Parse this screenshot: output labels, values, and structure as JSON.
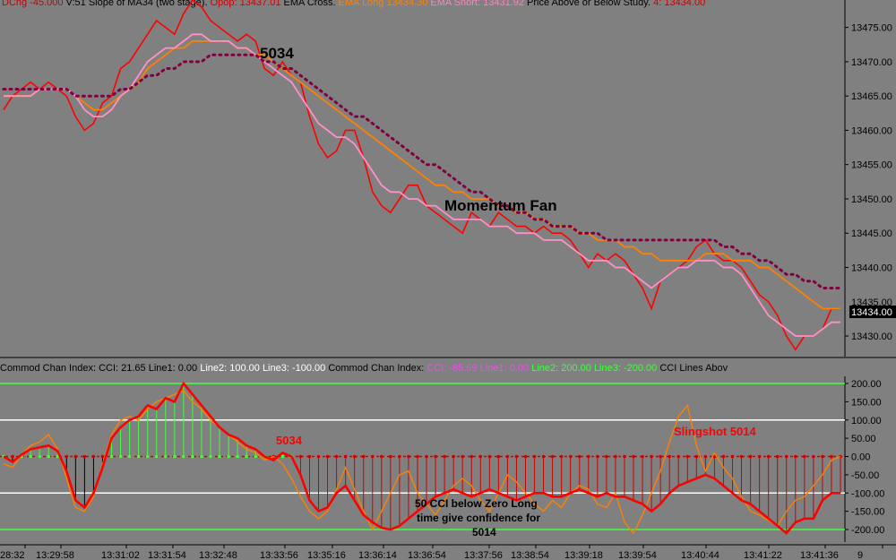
{
  "upper_pane": {
    "header": [
      {
        "text": "DChg -45.000",
        "color": "#cc0000"
      },
      {
        "text": "V:51",
        "color": "#000000"
      },
      {
        "text": "Slope of MA34 (two stage).",
        "color": "#000000"
      },
      {
        "text": "Opop: 13437.01",
        "color": "#cc0000"
      },
      {
        "text": "EMA Cross.",
        "color": "#000000"
      },
      {
        "text": "EMA Long 13434.30",
        "color": "#ff8000"
      },
      {
        "text": "EMA Short: 13431.92",
        "color": "#ff80c0"
      },
      {
        "text": "Price Above or Below Study.",
        "color": "#000000"
      },
      {
        "text": "4: 13434.00",
        "color": "#cc0000"
      }
    ],
    "price_axis": [
      "13475.00",
      "13470.00",
      "13465.00",
      "13460.00",
      "13455.00",
      "13450.00",
      "13445.00",
      "13440.00",
      "13430.00"
    ],
    "partial_price_label": "13435.00",
    "current_price": "13434.00",
    "annotations": {
      "label_5034": "5034",
      "momentum_fan": "Momentum Fan"
    }
  },
  "lower_pane": {
    "header": [
      {
        "text": "Commod Chan Index:",
        "color": "#000000"
      },
      {
        "text": "CCI: 21.65",
        "color": "#000000"
      },
      {
        "text": "Line1: 0.00",
        "color": "#000000"
      },
      {
        "text": "Line2: 100.00",
        "color": "#ffffff"
      },
      {
        "text": "Line3: -100.00",
        "color": "#ffffff"
      },
      {
        "text": "Commod Chan Index:",
        "color": "#000000"
      },
      {
        "text": "CCI: -85.69",
        "color": "#ff40ff"
      },
      {
        "text": "Line1: 0.00",
        "color": "#ff40ff"
      },
      {
        "text": "Line2: 200.00",
        "color": "#40ff40"
      },
      {
        "text": "Line3: -200.00",
        "color": "#40ff40"
      },
      {
        "text": "CCI Lines Abov",
        "color": "#000000"
      }
    ],
    "cci_axis": [
      "200.00",
      "150.00",
      "100.00",
      "50.00",
      "0.00",
      "-50.00",
      "-100.00",
      "-150.00",
      "-200.00"
    ],
    "annotations": {
      "label_5034": "5034",
      "slingshot": "Slingshot 5014",
      "note_line1": "50 CCI below Zero Long",
      "note_line2": "time give confidence for",
      "note_line3": "5014"
    }
  },
  "time_axis": [
    "28:32",
    "13:29:58",
    "13:31:02",
    "13:31:54",
    "13:32:48",
    "13:33:56",
    "13:35:16",
    "13:36:14",
    "13:36:54",
    "13:37:56",
    "13:38:54",
    "13:39:18",
    "13:39:54",
    "13:40:44",
    "13:41:22",
    "13:41:36",
    "9"
  ],
  "colors": {
    "background": "#808080",
    "price": "#ff0000",
    "ema_long": "#ff8000",
    "ema_short": "#ff90c8",
    "cci_main": "#ff0000",
    "cci_secondary": "#ff8000",
    "level_200": "#40ff40",
    "level_100": "#ffffff",
    "zero_line": "#cc0000"
  },
  "chart_data": [
    {
      "type": "line",
      "title": "",
      "ylim": [
        13427,
        13479
      ],
      "x": [
        0,
        1,
        2,
        3,
        4,
        5,
        6,
        7,
        8,
        9,
        10,
        11,
        12,
        13,
        14,
        15,
        16,
        17,
        18,
        19,
        20,
        21,
        22,
        23,
        24,
        25,
        26,
        27,
        28,
        29,
        30,
        31,
        32,
        33,
        34,
        35,
        36,
        37,
        38,
        39,
        40,
        41,
        42,
        43,
        44,
        45,
        46,
        47,
        48,
        49,
        50,
        51,
        52,
        53,
        54,
        55,
        56,
        57,
        58,
        59,
        60,
        61,
        62,
        63,
        64,
        65,
        66,
        67,
        68,
        69,
        70,
        71,
        72,
        73,
        74,
        75,
        76,
        77,
        78,
        79,
        80,
        81,
        82,
        83,
        84,
        85,
        86,
        87,
        88,
        89,
        90,
        91,
        92,
        93
      ],
      "series": [
        {
          "values": [
            13463,
            13465,
            13466,
            13467,
            13466,
            13467,
            13466,
            13465,
            13462,
            13460,
            13461,
            13464,
            13465,
            13469,
            13470,
            13472,
            13474,
            13476,
            13475,
            13474,
            13477,
            13479,
            13478,
            13476,
            13475,
            13474,
            13473,
            13474,
            13473,
            13469,
            13468,
            13470,
            13468,
            13467,
            13462,
            13458,
            13456,
            13457,
            13460,
            13460,
            13456,
            13451,
            13449,
            13448,
            13450,
            13452,
            13452,
            13449,
            13448,
            13447,
            13446,
            13445,
            13448,
            13447,
            13446,
            13448,
            13447,
            13446,
            13446,
            13445,
            13446,
            13445,
            13445,
            13444,
            13442,
            13440,
            13442,
            13441,
            13442,
            13441,
            13439,
            13437,
            13434,
            13438,
            13439,
            13440,
            13441,
            13443,
            13444,
            13442,
            13441,
            13441,
            13440,
            13438,
            13436,
            13435,
            13433,
            13430,
            13428,
            13430,
            13430,
            13431,
            13434,
            13434
          ]
        },
        {
          "values": [
            13465,
            13465,
            13465,
            13465,
            13466,
            13466,
            13466,
            13466,
            13465,
            13464,
            13463,
            13463,
            13464,
            13465,
            13466,
            13467,
            13469,
            13470,
            13471,
            13472,
            13472,
            13473,
            13473,
            13473,
            13473,
            13473,
            13472,
            13472,
            13471,
            13471,
            13470,
            13469,
            13468,
            13467,
            13466,
            13465,
            13464,
            13463,
            13462,
            13461,
            13460,
            13459,
            13458,
            13457,
            13456,
            13455,
            13454,
            13453,
            13452,
            13452,
            13451,
            13451,
            13450,
            13450,
            13450,
            13449,
            13449,
            13448,
            13448,
            13447,
            13447,
            13446,
            13446,
            13446,
            13445,
            13445,
            13444,
            13444,
            13444,
            13443,
            13443,
            13442,
            13442,
            13441,
            13441,
            13441,
            13441,
            13441,
            13442,
            13442,
            13442,
            13441,
            13441,
            13441,
            13440,
            13440,
            13439,
            13438,
            13437,
            13436,
            13435,
            13434,
            13434,
            13434
          ]
        },
        {
          "values": [
            13465,
            13465,
            13465,
            13465,
            13466,
            13466,
            13466,
            13466,
            13465,
            13463,
            13462,
            13462,
            13463,
            13465,
            13466,
            13468,
            13470,
            13471,
            13472,
            13472,
            13473,
            13474,
            13474,
            13473,
            13473,
            13473,
            13472,
            13472,
            13471,
            13470,
            13469,
            13468,
            13467,
            13465,
            13463,
            13461,
            13460,
            13459,
            13459,
            13458,
            13456,
            13454,
            13452,
            13451,
            13451,
            13450,
            13450,
            13449,
            13449,
            13448,
            13447,
            13447,
            13447,
            13447,
            13446,
            13446,
            13446,
            13445,
            13445,
            13445,
            13444,
            13444,
            13444,
            13443,
            13442,
            13441,
            13441,
            13441,
            13440,
            13440,
            13439,
            13438,
            13437,
            13438,
            13439,
            13440,
            13440,
            13441,
            13441,
            13441,
            13440,
            13440,
            13439,
            13437,
            13435,
            13433,
            13432,
            13431,
            13430,
            13430,
            13430,
            13431,
            13432,
            13432
          ]
        },
        {
          "values": [
            13466,
            13466,
            13466,
            13466,
            13466,
            13466,
            13466,
            13466,
            13465,
            13465,
            13465,
            13465,
            13465,
            13466,
            13466,
            13467,
            13468,
            13468,
            13469,
            13469,
            13470,
            13470,
            13470,
            13471,
            13471,
            13471,
            13471,
            13471,
            13471,
            13470,
            13470,
            13469,
            13469,
            13468,
            13467,
            13466,
            13465,
            13464,
            13463,
            13462,
            13462,
            13461,
            13460,
            13459,
            13458,
            13457,
            13456,
            13455,
            13455,
            13454,
            13453,
            13452,
            13451,
            13451,
            13450,
            13449,
            13449,
            13448,
            13448,
            13447,
            13447,
            13446,
            13446,
            13446,
            13445,
            13445,
            13445,
            13444,
            13444,
            13444,
            13444,
            13444,
            13444,
            13444,
            13444,
            13444,
            13444,
            13444,
            13444,
            13444,
            13443,
            13443,
            13442,
            13442,
            13441,
            13441,
            13440,
            13439,
            13439,
            13438,
            13438,
            13437,
            13437,
            13437
          ]
        }
      ]
    },
    {
      "type": "line",
      "title": "",
      "ylim": [
        -225,
        225
      ],
      "x": [
        0,
        1,
        2,
        3,
        4,
        5,
        6,
        7,
        8,
        9,
        10,
        11,
        12,
        13,
        14,
        15,
        16,
        17,
        18,
        19,
        20,
        21,
        22,
        23,
        24,
        25,
        26,
        27,
        28,
        29,
        30,
        31,
        32,
        33,
        34,
        35,
        36,
        37,
        38,
        39,
        40,
        41,
        42,
        43,
        44,
        45,
        46,
        47,
        48,
        49,
        50,
        51,
        52,
        53,
        54,
        55,
        56,
        57,
        58,
        59,
        60,
        61,
        62,
        63,
        64,
        65,
        66,
        67,
        68,
        69,
        70,
        71,
        72,
        73,
        74,
        75,
        76,
        77,
        78,
        79,
        80,
        81,
        82,
        83,
        84,
        85,
        86,
        87,
        88,
        89,
        90,
        91,
        92,
        93
      ],
      "series": [
        {
          "values": [
            0,
            -15,
            5,
            20,
            25,
            30,
            15,
            -40,
            -120,
            -140,
            -100,
            -30,
            50,
            80,
            100,
            110,
            140,
            130,
            160,
            150,
            200,
            170,
            140,
            110,
            80,
            60,
            50,
            30,
            20,
            0,
            -10,
            10,
            0,
            -50,
            -120,
            -150,
            -140,
            -100,
            -80,
            -120,
            -160,
            -180,
            -195,
            -200,
            -190,
            -170,
            -150,
            -130,
            -110,
            -100,
            -90,
            -100,
            -110,
            -100,
            -90,
            -100,
            -110,
            -120,
            -110,
            -100,
            -100,
            -110,
            -110,
            -100,
            -90,
            -100,
            -110,
            -100,
            -110,
            -110,
            -120,
            -130,
            -150,
            -130,
            -100,
            -80,
            -70,
            -60,
            -50,
            -60,
            -80,
            -100,
            -120,
            -130,
            -150,
            -170,
            -190,
            -210,
            -180,
            -170,
            -170,
            -120,
            -100,
            -100
          ]
        },
        {
          "values": [
            -20,
            -30,
            5,
            30,
            40,
            60,
            20,
            -60,
            -140,
            -150,
            -110,
            -20,
            60,
            100,
            110,
            100,
            130,
            150,
            160,
            170,
            180,
            150,
            130,
            100,
            80,
            60,
            40,
            20,
            10,
            -10,
            0,
            -20,
            -60,
            -110,
            -150,
            -170,
            -150,
            -90,
            -30,
            -90,
            -150,
            -200,
            -150,
            -100,
            -50,
            -40,
            -100,
            -130,
            -160,
            -120,
            -80,
            -60,
            -80,
            -120,
            -150,
            -100,
            -50,
            -70,
            -100,
            -130,
            -150,
            -120,
            -140,
            -100,
            -80,
            -90,
            -130,
            -140,
            -100,
            -180,
            -210,
            -160,
            -100,
            -40,
            40,
            110,
            140,
            30,
            -40,
            10,
            -30,
            -60,
            -110,
            -150,
            -160,
            -175,
            -190,
            -150,
            -120,
            -110,
            -80,
            -50,
            -10,
            0
          ]
        }
      ]
    }
  ]
}
